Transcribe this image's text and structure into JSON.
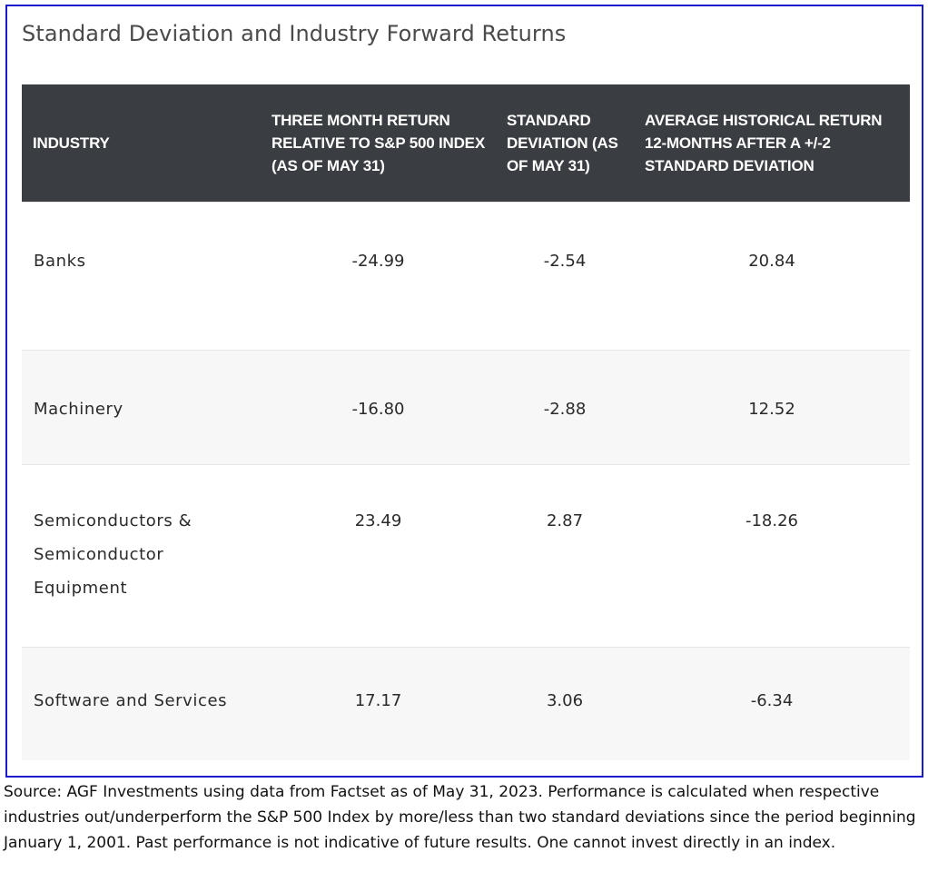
{
  "chart_data": {
    "type": "table",
    "title": "Standard Deviation and Industry Forward Returns",
    "columns": [
      "INDUSTRY",
      "THREE MONTH RETURN RELATIVE TO S&P 500 INDEX (AS OF MAY 31)",
      "STANDARD DEVIATION (AS OF MAY 31)",
      "AVERAGE HISTORICAL RETURN 12-MONTHS AFTER A +/-2 STANDARD DEVIATION"
    ],
    "rows": [
      {
        "industry": "Banks",
        "three_month_return": "-24.99",
        "std_dev": "-2.54",
        "avg_return": "20.84"
      },
      {
        "industry": "Machinery",
        "three_month_return": "-16.80",
        "std_dev": "-2.88",
        "avg_return": "12.52"
      },
      {
        "industry": "Semiconductors & Semiconductor Equipment",
        "three_month_return": "23.49",
        "std_dev": "2.87",
        "avg_return": "-18.26"
      },
      {
        "industry": "Software and Services",
        "three_month_return": "17.17",
        "std_dev": "3.06",
        "avg_return": "-6.34"
      }
    ]
  },
  "source_note": "Source: AGF Investments using data from Factset as of May 31, 2023.  Performance is calculated when respective industries out/underperform the S&P 500 Index by more/less than two standard deviations since the period beginning January 1, 2001.  Past performance is not indicative of future results. One cannot invest directly in an index."
}
